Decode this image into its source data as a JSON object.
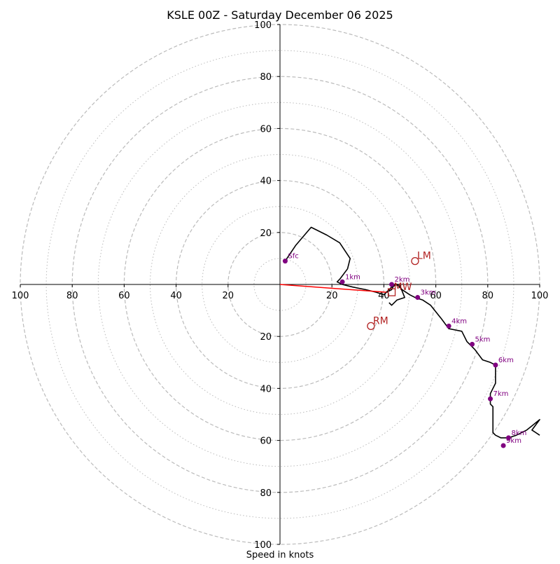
{
  "chart_data": {
    "type": "hodograph",
    "title": "KSLE 00Z - Saturday December 06 2025",
    "xlabel": "Speed in knots",
    "axis_range": [
      -100,
      100
    ],
    "ring_major": [
      20,
      40,
      60,
      80,
      100
    ],
    "ring_minor": [
      10,
      30,
      50,
      70,
      90
    ],
    "x_ticks": [
      {
        "v": -100,
        "label": "100"
      },
      {
        "v": -80,
        "label": "80"
      },
      {
        "v": -60,
        "label": "60"
      },
      {
        "v": -40,
        "label": "40"
      },
      {
        "v": -20,
        "label": "20"
      },
      {
        "v": 20,
        "label": "20"
      },
      {
        "v": 40,
        "label": "40"
      },
      {
        "v": 60,
        "label": "60"
      },
      {
        "v": 80,
        "label": "80"
      },
      {
        "v": 100,
        "label": "100"
      }
    ],
    "y_ticks": [
      {
        "v": 100,
        "label": "100"
      },
      {
        "v": 80,
        "label": "80"
      },
      {
        "v": 60,
        "label": "60"
      },
      {
        "v": 40,
        "label": "40"
      },
      {
        "v": 20,
        "label": "20"
      },
      {
        "v": -20,
        "label": "20"
      },
      {
        "v": -40,
        "label": "40"
      },
      {
        "v": -60,
        "label": "60"
      },
      {
        "v": -80,
        "label": "80"
      },
      {
        "v": -100,
        "label": "100"
      }
    ],
    "profile": {
      "color": "#000000",
      "u": [
        2,
        6,
        12,
        18,
        23,
        27,
        26,
        23,
        22,
        24,
        28,
        33,
        37,
        40,
        41,
        43,
        45,
        47,
        50,
        52,
        55,
        58,
        62,
        65,
        70,
        72,
        75,
        78,
        81,
        83,
        83,
        83,
        81,
        81,
        82,
        82,
        82,
        83,
        85,
        88,
        91,
        95,
        100,
        97,
        100
      ],
      "v": [
        9,
        15,
        22,
        19,
        16,
        10,
        6,
        2,
        1,
        0,
        -1,
        -2,
        -3,
        -4,
        -3,
        -1,
        0,
        -2,
        -4,
        -5,
        -6,
        -8,
        -13,
        -17,
        -18,
        -22,
        -25,
        -29,
        -30,
        -31,
        -34,
        -38,
        -42,
        -46,
        -47,
        -52,
        -57,
        -58,
        -59,
        -59,
        -58,
        -56,
        -52,
        -56,
        -58
      ]
    },
    "segment2": {
      "u": [
        41,
        43,
        44,
        46,
        48,
        45,
        43,
        42
      ],
      "v": [
        -3,
        -2,
        0,
        0,
        -5,
        -6,
        -8,
        -7
      ]
    },
    "shear_vector": {
      "color": "#ff0000",
      "from": [
        0,
        0
      ],
      "to": [
        41,
        -3
      ]
    },
    "levels": [
      {
        "label": "Sfc",
        "u": 2,
        "v": 9
      },
      {
        "label": "1km",
        "u": 24,
        "v": 1
      },
      {
        "label": "2km",
        "u": 43,
        "v": 0
      },
      {
        "label": "3km",
        "u": 53,
        "v": -5
      },
      {
        "label": "4km",
        "u": 65,
        "v": -16
      },
      {
        "label": "5km",
        "u": 74,
        "v": -23
      },
      {
        "label": "6km",
        "u": 83,
        "v": -31
      },
      {
        "label": "7km",
        "u": 81,
        "v": -44
      },
      {
        "label": "8km",
        "u": 88,
        "v": -59
      },
      {
        "label": "9km",
        "u": 86,
        "v": -62
      }
    ],
    "storm_motions": [
      {
        "label": "LM",
        "u": 52,
        "v": 9,
        "marker": "circle"
      },
      {
        "label": "RM",
        "u": 35,
        "v": -16,
        "marker": "circle"
      },
      {
        "label": "MW",
        "u": 43,
        "v": -3,
        "marker": "square"
      }
    ],
    "colors": {
      "grid": "#bbbbbb",
      "level_marker": "#800080",
      "storm_motion": "#b22222"
    }
  }
}
